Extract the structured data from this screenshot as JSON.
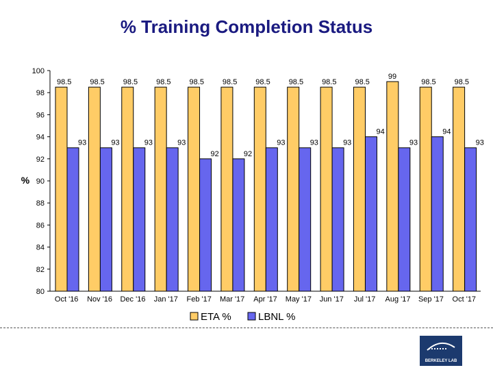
{
  "chart_data": {
    "type": "bar",
    "title": "% Training Completion Status",
    "xlabel": "",
    "ylabel": "%",
    "ylim": [
      80,
      100
    ],
    "yticks": [
      80,
      82,
      84,
      86,
      88,
      90,
      92,
      94,
      96,
      98,
      100
    ],
    "categories": [
      "Oct '16",
      "Nov '16",
      "Dec '16",
      "Jan '17",
      "Feb '17",
      "Mar '17",
      "Apr '17",
      "May '17",
      "Jun '17",
      "Jul '17",
      "Aug '17",
      "Sep '17",
      "Oct '17"
    ],
    "series": [
      {
        "name": "ETA %",
        "color": "#ffcc66",
        "values": [
          98.5,
          98.5,
          98.5,
          98.5,
          98.5,
          98.5,
          98.5,
          98.5,
          98.5,
          98.5,
          99,
          98.5,
          98.5
        ]
      },
      {
        "name": "LBNL %",
        "color": "#6666ee",
        "values": [
          93,
          93,
          93,
          93,
          92,
          92,
          93,
          93,
          93,
          94,
          93,
          94,
          93
        ]
      }
    ],
    "legend": "bottom",
    "grid": false
  },
  "logo": {
    "text": "BERKELEY LAB",
    "color": "#1c3a6e"
  }
}
